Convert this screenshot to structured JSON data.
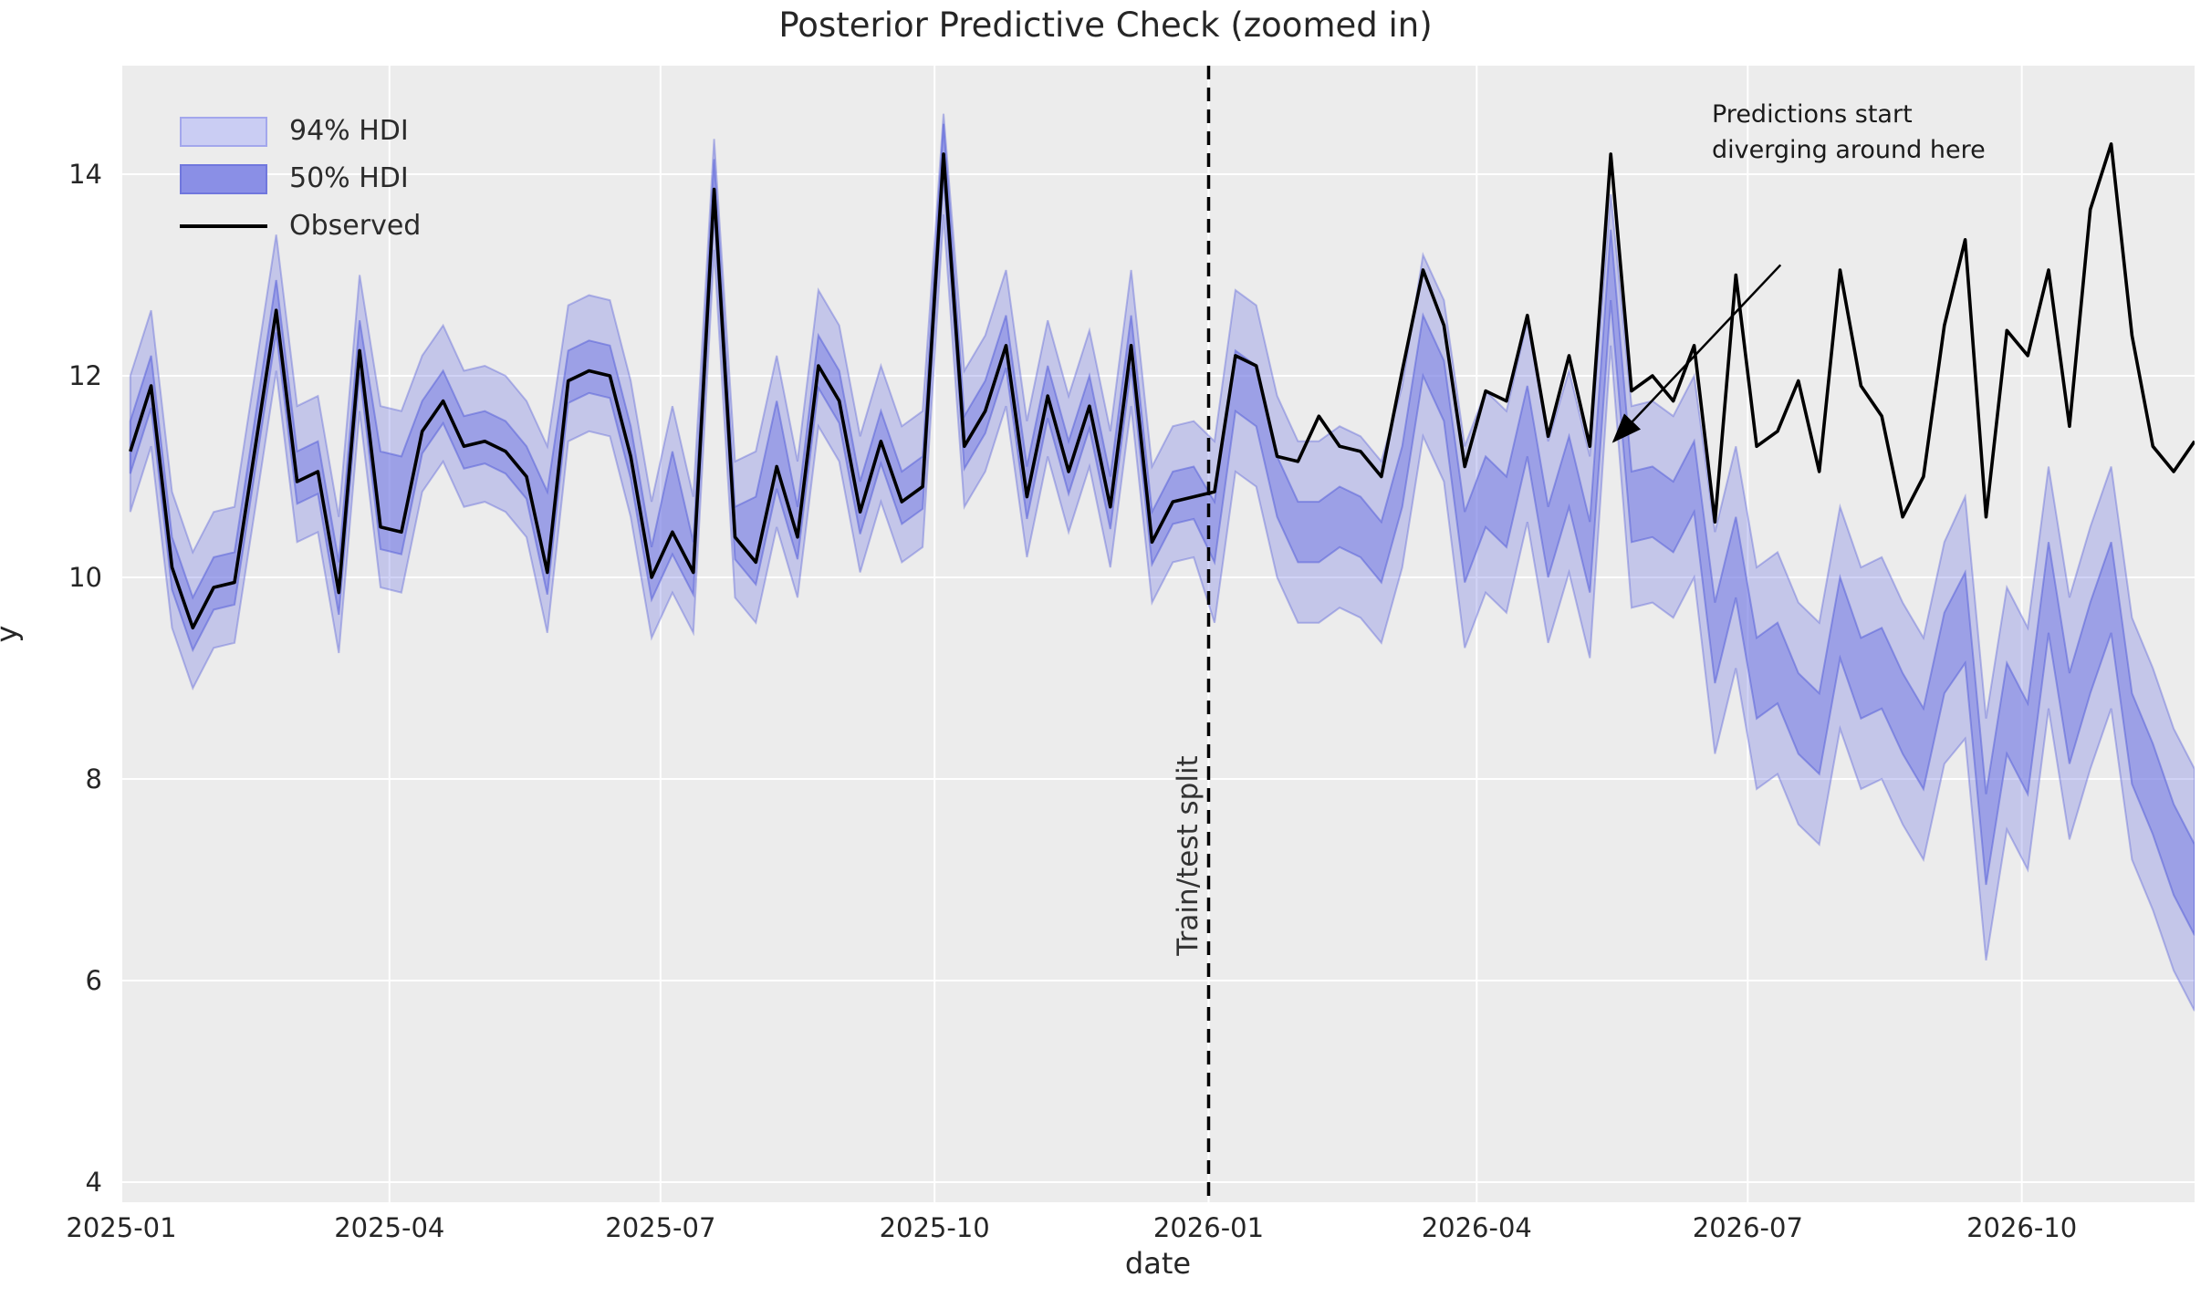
{
  "chart_data": {
    "type": "line",
    "title": "Posterior Predictive Check (zoomed in)",
    "xlabel": "date",
    "ylabel": "y",
    "legend": [
      {
        "label": "94% HDI",
        "swatch": "hdi94-swatch",
        "color": "#cacdf3"
      },
      {
        "label": "50% HDI",
        "swatch": "hdi50-swatch",
        "color": "#8a8fe6"
      },
      {
        "label": "Observed",
        "swatch": "line-swatch",
        "color": "#000000"
      }
    ],
    "annotation": {
      "text": "Predictions start\ndiverging around here",
      "arrow_from": {
        "date": "2026-07-12",
        "value": 13.1
      },
      "arrow_to": {
        "date": "2026-05-17",
        "value": 11.35
      }
    },
    "split": {
      "date": "2026-01-01",
      "label": "Train/test split"
    },
    "x_ticks": [
      {
        "label": "2025-01",
        "date": "2025-01-01"
      },
      {
        "label": "2025-04",
        "date": "2025-04-01"
      },
      {
        "label": "2025-07",
        "date": "2025-07-01"
      },
      {
        "label": "2025-10",
        "date": "2025-10-01"
      },
      {
        "label": "2026-01",
        "date": "2026-01-01"
      },
      {
        "label": "2026-04",
        "date": "2026-04-01"
      },
      {
        "label": "2026-07",
        "date": "2026-07-01"
      },
      {
        "label": "2026-10",
        "date": "2026-10-01"
      }
    ],
    "y_ticks": [
      4,
      6,
      8,
      10,
      12,
      14
    ],
    "xlim": [
      "2025-01-01",
      "2026-11-28"
    ],
    "ylim": [
      3.8,
      15.08
    ],
    "grid": true,
    "legend_position": "upper left",
    "colors": {
      "axes_bg": "#ececec",
      "grid": "#ffffff",
      "band": "#7b82e4",
      "band_edge": "#5a62d8",
      "observed": "#000000",
      "split_line": "#000000",
      "text": "#262626"
    },
    "series": {
      "dates": [
        "2025-01-04",
        "2025-01-11",
        "2025-01-18",
        "2025-01-25",
        "2025-02-01",
        "2025-02-08",
        "2025-02-15",
        "2025-02-22",
        "2025-03-01",
        "2025-03-08",
        "2025-03-15",
        "2025-03-22",
        "2025-03-29",
        "2025-04-05",
        "2025-04-12",
        "2025-04-19",
        "2025-04-26",
        "2025-05-03",
        "2025-05-10",
        "2025-05-17",
        "2025-05-24",
        "2025-05-31",
        "2025-06-07",
        "2025-06-14",
        "2025-06-21",
        "2025-06-28",
        "2025-07-05",
        "2025-07-12",
        "2025-07-19",
        "2025-07-26",
        "2025-08-02",
        "2025-08-09",
        "2025-08-16",
        "2025-08-23",
        "2025-08-30",
        "2025-09-06",
        "2025-09-13",
        "2025-09-20",
        "2025-09-27",
        "2025-10-04",
        "2025-10-11",
        "2025-10-18",
        "2025-10-25",
        "2025-11-01",
        "2025-11-08",
        "2025-11-15",
        "2025-11-22",
        "2025-11-29",
        "2025-12-06",
        "2025-12-13",
        "2025-12-20",
        "2025-12-27",
        "2026-01-03",
        "2026-01-10",
        "2026-01-17",
        "2026-01-24",
        "2026-01-31",
        "2026-02-07",
        "2026-02-14",
        "2026-02-21",
        "2026-02-28",
        "2026-03-07",
        "2026-03-14",
        "2026-03-21",
        "2026-03-28",
        "2026-04-04",
        "2026-04-11",
        "2026-04-18",
        "2026-04-25",
        "2026-05-02",
        "2026-05-09",
        "2026-05-16",
        "2026-05-23",
        "2026-05-30",
        "2026-06-06",
        "2026-06-13",
        "2026-06-20",
        "2026-06-27",
        "2026-07-04",
        "2026-07-11",
        "2026-07-18",
        "2026-07-25",
        "2026-08-01",
        "2026-08-08",
        "2026-08-15",
        "2026-08-22",
        "2026-08-29",
        "2026-09-05",
        "2026-09-12",
        "2026-09-19",
        "2026-09-26",
        "2026-10-03",
        "2026-10-10",
        "2026-10-17",
        "2026-10-24",
        "2026-10-31",
        "2026-11-07",
        "2026-11-14",
        "2026-11-21",
        "2026-11-28"
      ],
      "observed": [
        11.25,
        11.9,
        10.1,
        9.5,
        9.9,
        9.95,
        11.3,
        12.65,
        10.95,
        11.05,
        9.85,
        12.25,
        10.5,
        10.45,
        11.45,
        11.75,
        11.3,
        11.35,
        11.25,
        11.0,
        10.05,
        11.95,
        12.05,
        12.0,
        11.2,
        10.0,
        10.45,
        10.05,
        13.85,
        10.4,
        10.15,
        11.1,
        10.4,
        12.1,
        11.75,
        10.65,
        11.35,
        10.75,
        10.9,
        14.2,
        11.3,
        11.65,
        12.3,
        10.8,
        11.8,
        11.05,
        11.7,
        10.7,
        12.3,
        10.35,
        10.75,
        10.8,
        10.85,
        12.2,
        12.1,
        11.2,
        11.15,
        11.6,
        11.3,
        11.25,
        11.0,
        12.05,
        13.05,
        12.5,
        11.1,
        11.85,
        11.75,
        12.6,
        11.4,
        12.2,
        11.3,
        14.2,
        11.85,
        12.0,
        11.75,
        12.3,
        10.55,
        13.0,
        11.3,
        11.45,
        11.95,
        11.05,
        13.05,
        11.9,
        11.6,
        10.6,
        11.0,
        12.5,
        13.35,
        10.6,
        12.45,
        12.2,
        13.05,
        11.5,
        13.65,
        14.3,
        12.4,
        11.3,
        11.05,
        11.35
      ],
      "hdi50_lower": [
        11.03,
        11.68,
        9.88,
        9.28,
        9.68,
        9.73,
        11.08,
        12.43,
        10.73,
        10.83,
        9.63,
        12.03,
        10.28,
        10.23,
        11.23,
        11.53,
        11.08,
        11.13,
        11.03,
        10.78,
        9.83,
        11.73,
        11.83,
        11.78,
        10.98,
        9.78,
        10.23,
        9.83,
        13.63,
        10.18,
        9.93,
        10.88,
        10.18,
        11.88,
        11.53,
        10.43,
        11.13,
        10.53,
        10.68,
        13.98,
        11.08,
        11.43,
        12.08,
        10.58,
        11.58,
        10.83,
        11.48,
        10.48,
        12.08,
        10.13,
        10.53,
        10.58,
        10.15,
        11.65,
        11.5,
        10.6,
        10.15,
        10.15,
        10.3,
        10.2,
        9.95,
        10.7,
        12.0,
        11.55,
        9.95,
        10.5,
        10.3,
        11.2,
        10.0,
        10.7,
        9.85,
        12.75,
        10.35,
        10.4,
        10.25,
        10.65,
        8.95,
        9.8,
        8.6,
        8.75,
        8.25,
        8.05,
        9.2,
        8.6,
        8.7,
        8.25,
        7.9,
        8.85,
        9.15,
        6.95,
        8.25,
        7.85,
        9.45,
        8.15,
        8.85,
        9.45,
        7.95,
        7.45,
        6.85,
        6.45
      ],
      "hdi50_upper": [
        11.55,
        12.2,
        10.4,
        9.8,
        10.2,
        10.25,
        11.6,
        12.95,
        11.25,
        11.35,
        10.15,
        12.55,
        11.25,
        11.2,
        11.75,
        12.05,
        11.6,
        11.65,
        11.55,
        11.3,
        10.85,
        12.25,
        12.35,
        12.3,
        11.5,
        10.3,
        11.25,
        10.35,
        14.15,
        10.7,
        10.8,
        11.75,
        10.7,
        12.4,
        12.05,
        10.95,
        11.65,
        11.05,
        11.2,
        14.5,
        11.6,
        11.95,
        12.6,
        11.1,
        12.1,
        11.35,
        12.0,
        11.0,
        12.6,
        10.65,
        11.05,
        11.1,
        10.75,
        12.25,
        12.1,
        11.2,
        10.75,
        10.75,
        10.9,
        10.8,
        10.55,
        11.3,
        12.6,
        12.15,
        10.65,
        11.2,
        11.0,
        11.9,
        10.7,
        11.4,
        10.55,
        13.45,
        11.05,
        11.1,
        10.95,
        11.35,
        9.75,
        10.6,
        9.4,
        9.55,
        9.05,
        8.85,
        10.0,
        9.4,
        9.5,
        9.05,
        8.7,
        9.65,
        10.05,
        7.85,
        9.15,
        8.75,
        10.35,
        9.05,
        9.75,
        10.35,
        8.85,
        8.35,
        7.75,
        7.35
      ],
      "hdi94_lower": [
        10.65,
        11.3,
        9.5,
        8.9,
        9.3,
        9.35,
        10.7,
        12.05,
        10.35,
        10.45,
        9.25,
        11.65,
        9.9,
        9.85,
        10.85,
        11.15,
        10.7,
        10.75,
        10.65,
        10.4,
        9.45,
        11.35,
        11.45,
        11.4,
        10.6,
        9.4,
        9.85,
        9.45,
        13.25,
        9.8,
        9.55,
        10.5,
        9.8,
        11.5,
        11.15,
        10.05,
        10.75,
        10.15,
        10.3,
        13.6,
        10.7,
        11.05,
        11.7,
        10.2,
        11.2,
        10.45,
        11.1,
        10.1,
        11.7,
        9.75,
        10.15,
        10.2,
        9.55,
        11.05,
        10.9,
        10.0,
        9.55,
        9.55,
        9.7,
        9.6,
        9.35,
        10.1,
        11.4,
        10.95,
        9.3,
        9.85,
        9.65,
        10.55,
        9.35,
        10.05,
        9.2,
        12.3,
        9.7,
        9.75,
        9.6,
        10.0,
        8.25,
        9.1,
        7.9,
        8.05,
        7.55,
        7.35,
        8.5,
        7.9,
        8.0,
        7.55,
        7.2,
        8.15,
        8.4,
        6.2,
        7.5,
        7.1,
        8.7,
        7.4,
        8.1,
        8.7,
        7.2,
        6.7,
        6.1,
        5.7
      ],
      "hdi94_upper": [
        12.0,
        12.65,
        10.85,
        10.25,
        10.65,
        10.7,
        12.05,
        13.4,
        11.7,
        11.8,
        10.6,
        13.0,
        11.7,
        11.65,
        12.2,
        12.5,
        12.05,
        12.1,
        12.0,
        11.75,
        11.3,
        12.7,
        12.8,
        12.75,
        11.95,
        10.75,
        11.7,
        10.8,
        14.35,
        11.15,
        11.25,
        12.2,
        11.15,
        12.85,
        12.5,
        11.4,
        12.1,
        11.5,
        11.65,
        14.6,
        12.05,
        12.4,
        13.05,
        11.55,
        12.55,
        11.8,
        12.45,
        11.45,
        13.05,
        11.1,
        11.5,
        11.55,
        11.35,
        12.85,
        12.7,
        11.8,
        11.35,
        11.35,
        11.5,
        11.4,
        11.15,
        11.9,
        13.2,
        12.75,
        11.3,
        11.85,
        11.65,
        12.55,
        11.35,
        12.05,
        11.2,
        13.8,
        11.7,
        11.75,
        11.6,
        12.0,
        10.45,
        11.3,
        10.1,
        10.25,
        9.75,
        9.55,
        10.7,
        10.1,
        10.2,
        9.75,
        9.4,
        10.35,
        10.8,
        8.6,
        9.9,
        9.5,
        11.1,
        9.8,
        10.5,
        11.1,
        9.6,
        9.1,
        8.5,
        8.1
      ]
    }
  }
}
